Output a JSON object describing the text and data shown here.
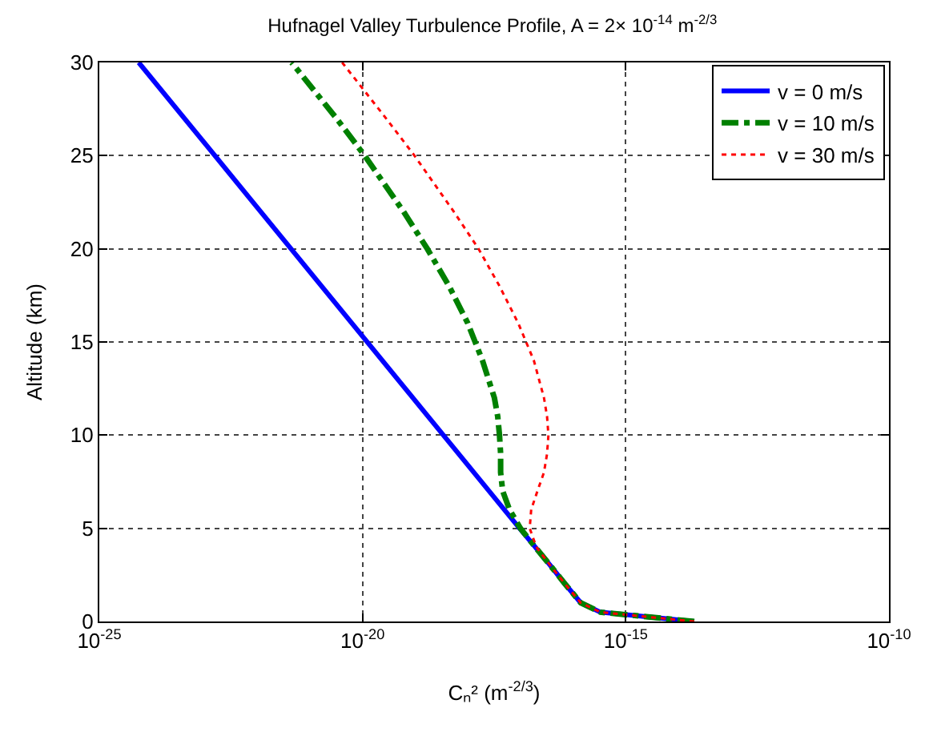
{
  "chart_data": {
    "type": "line",
    "title": "Hufnagel Valley Turbulence Profile, A = 2× 10$^{-14}$ m$^{-2/3}$",
    "xlabel": "Cₙ² (m$^{-2/3}$)",
    "ylabel": "Altitude (km)",
    "log": "x",
    "grid": true,
    "legend": "top right",
    "xlim": [
      1e-25,
      1e-10
    ],
    "xticks": [
      {
        "value": 1e-25,
        "label": "10$^{-25}$"
      },
      {
        "value": 1e-20,
        "label": "10$^{-20}$"
      },
      {
        "value": 1e-15,
        "label": "10$^{-15}$"
      },
      {
        "value": 1e-10,
        "label": "10$^{-10}$"
      }
    ],
    "ylim": [
      0,
      30
    ],
    "yticks": [
      0,
      5,
      10,
      15,
      20,
      25,
      30
    ],
    "series": [
      {
        "name": "v = 0 m/s",
        "color": "#0000ff",
        "line_style": "solid",
        "x": [
          2e-14,
          3.3e-16,
          1.4e-16,
          7.1e-17,
          3.7e-17,
          1.9e-17,
          9.6e-18,
          5.6e-25
        ],
        "values": [
          0,
          0.5,
          1,
          2,
          3,
          4,
          5,
          30
        ]
      },
      {
        "name": "v = 10 m/s",
        "color": "#008000",
        "line_style": "dashdot",
        "x": [
          2e-14,
          3.3e-16,
          1.4e-16,
          7.1e-17,
          3.7e-17,
          1.9e-17,
          1e-17,
          6.2e-18,
          4.6e-18,
          4.2e-18,
          4.2e-18,
          4e-18,
          3.7e-18,
          3.2e-18,
          1.9e-18,
          1e-18,
          4.4e-19,
          1.7e-19,
          6e-20,
          1.1e-20,
          3.2e-21,
          4.5e-22
        ],
        "values": [
          0,
          0.5,
          1,
          2,
          3,
          4,
          5,
          6,
          7,
          8,
          9,
          10,
          11,
          12,
          14,
          16,
          18,
          20,
          22,
          25,
          27,
          30
        ]
      },
      {
        "name": "v = 30 m/s",
        "color": "#ff0000",
        "line_style": "dotted",
        "x": [
          2e-14,
          3.3e-16,
          1.4e-16,
          7.1e-17,
          3.7e-17,
          2e-17,
          1.5e-17,
          1.6e-17,
          2.1e-17,
          2.8e-17,
          3.2e-17,
          3.4e-17,
          3.2e-17,
          2.8e-17,
          1.8e-17,
          9.1e-18,
          4e-18,
          1.6e-18,
          5.4e-19,
          9.7e-20,
          2.8e-20,
          4.1e-21
        ],
        "values": [
          0,
          0.5,
          1,
          2,
          3,
          4,
          5,
          6,
          7,
          8,
          9,
          10,
          11,
          12,
          14,
          16,
          18,
          20,
          22,
          25,
          27,
          30
        ]
      }
    ]
  }
}
